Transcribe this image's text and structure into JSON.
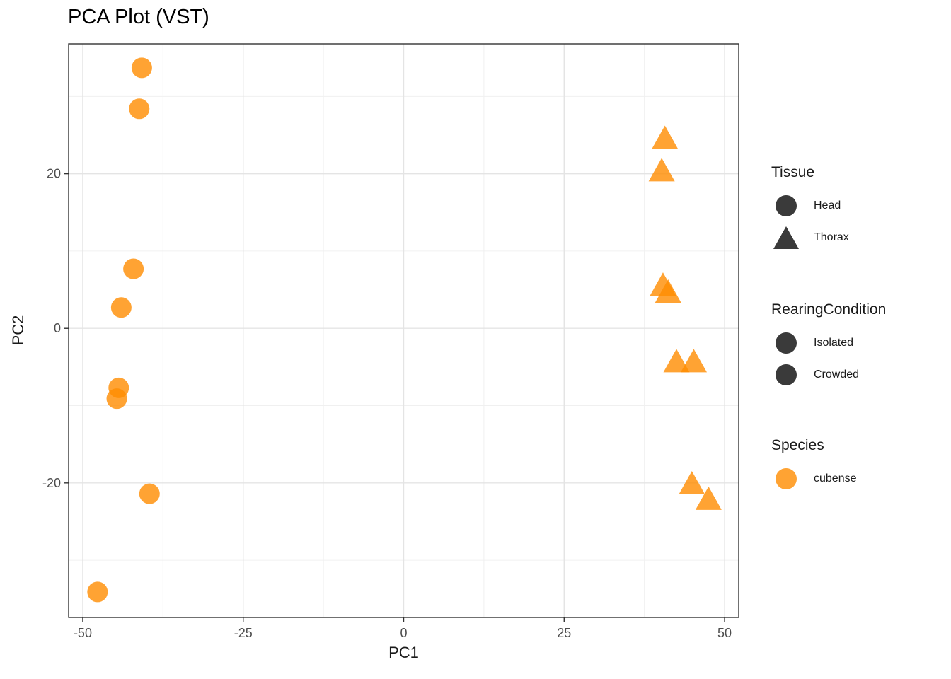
{
  "title": "PCA Plot (VST)",
  "chart_data": {
    "type": "scatter",
    "title": "PCA Plot (VST)",
    "xlabel": "PC1",
    "ylabel": "PC2",
    "xlim": [
      -52.2,
      52.2
    ],
    "ylim": [
      -37.4,
      36.8
    ],
    "x_major_ticks": [
      -50,
      -25,
      0,
      25,
      50
    ],
    "x_minor_ticks": [
      -37.5,
      -12.5,
      12.5,
      37.5
    ],
    "y_major_ticks": [
      -20,
      0,
      20
    ],
    "y_minor_ticks": [
      -30,
      -10,
      10,
      30
    ],
    "grid": true,
    "legend_position": "right",
    "point_color": "#FF8C00",
    "point_alpha": 0.8,
    "series": [
      {
        "name": "Head",
        "marker": "circle",
        "points": [
          [
            -40.8,
            33.7
          ],
          [
            -41.2,
            28.4
          ],
          [
            -42.1,
            7.7
          ],
          [
            -44.0,
            2.7
          ],
          [
            -44.4,
            -7.7
          ],
          [
            -44.7,
            -9.1
          ],
          [
            -39.6,
            -21.4
          ],
          [
            -47.7,
            -34.1
          ]
        ]
      },
      {
        "name": "Thorax",
        "marker": "triangle",
        "points": [
          [
            40.7,
            24.5
          ],
          [
            40.2,
            20.3
          ],
          [
            40.4,
            5.5
          ],
          [
            41.2,
            4.6
          ],
          [
            42.5,
            -4.4
          ],
          [
            45.2,
            -4.4
          ],
          [
            44.9,
            -20.2
          ],
          [
            47.5,
            -22.2
          ]
        ]
      }
    ]
  },
  "legend": {
    "groups": [
      {
        "title": "Tissue",
        "glyph_color": "#3a3a3a",
        "items": [
          {
            "label": "Head",
            "marker": "circle"
          },
          {
            "label": "Thorax",
            "marker": "triangle"
          }
        ]
      },
      {
        "title": "RearingCondition",
        "glyph_color": "#3a3a3a",
        "items": [
          {
            "label": "Isolated",
            "marker": "circle"
          },
          {
            "label": "Crowded",
            "marker": "circle"
          }
        ]
      },
      {
        "title": "Species",
        "glyph_color": "#FF8C00",
        "items": [
          {
            "label": "cubense",
            "marker": "circle"
          }
        ]
      }
    ]
  },
  "colors": {
    "point_orange": "#FF8C00",
    "legend_dark_glyph": "#3a3a3a",
    "panel_border": "#333333",
    "grid_major": "#e4e4e4",
    "grid_minor": "#f0f0f0",
    "tick_label": "#4d4d4d",
    "text": "#1a1a1a"
  }
}
